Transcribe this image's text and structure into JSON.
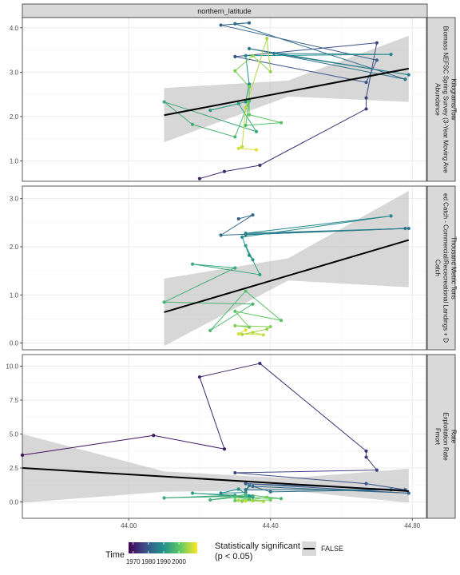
{
  "strip_top": "northern_latitude",
  "x_ticks": [
    "44.00",
    "44.40",
    "44.80"
  ],
  "colors": {
    "strip_fill": "#d9d9d9",
    "strip_border": "#333333",
    "panel_border": "#333333",
    "grid_major": "#ebebeb",
    "grid_minor": "#f5f5f5",
    "ribbon": "#bdbdbd",
    "trend": "#000000",
    "viridis": [
      "#440154",
      "#3b528b",
      "#21908c",
      "#5dc863",
      "#fde725"
    ]
  },
  "legend": {
    "time_title": "Time",
    "time_labels": [
      "1970",
      "1980",
      "1990",
      "2000"
    ],
    "sig_title_line1": "Statistically significant",
    "sig_title_line2": "(p < 0.05)",
    "sig_label": "FALSE"
  },
  "chart_data": [
    {
      "type": "scatter",
      "panel": "Abundance",
      "strip_lines": [
        "Abundance",
        "Biomass NEFSC Spring Survey (3-Year Moving Ave",
        "Kilograms/Tow"
      ],
      "y_ticks": [
        "1.0",
        "2.0",
        "3.0",
        "4.0"
      ],
      "xlim": [
        43.7,
        44.84
      ],
      "ylim": [
        0.54,
        4.23
      ],
      "points": [
        {
          "x": 44.2,
          "y": 0.6,
          "t": 1972
        },
        {
          "x": 44.27,
          "y": 0.76,
          "t": 1973
        },
        {
          "x": 44.37,
          "y": 0.9,
          "t": 1974
        },
        {
          "x": 44.67,
          "y": 2.17,
          "t": 1975
        },
        {
          "x": 44.67,
          "y": 2.42,
          "t": 1976
        },
        {
          "x": 44.7,
          "y": 3.66,
          "t": 1977
        },
        {
          "x": 44.3,
          "y": 3.35,
          "t": 1978
        },
        {
          "x": 44.67,
          "y": 2.77,
          "t": 1979
        },
        {
          "x": 44.7,
          "y": 3.27,
          "t": 1980
        },
        {
          "x": 44.26,
          "y": 4.06,
          "t": 1981
        },
        {
          "x": 44.34,
          "y": 4.11,
          "t": 1982
        },
        {
          "x": 44.3,
          "y": 4.09,
          "t": 1983
        },
        {
          "x": 44.78,
          "y": 2.84,
          "t": 1984
        },
        {
          "x": 44.34,
          "y": 3.53,
          "t": 1985
        },
        {
          "x": 44.79,
          "y": 2.94,
          "t": 1986
        },
        {
          "x": 44.41,
          "y": 3.42,
          "t": 1987
        },
        {
          "x": 44.74,
          "y": 3.4,
          "t": 1988
        },
        {
          "x": 44.33,
          "y": 3.37,
          "t": 1989
        },
        {
          "x": 44.34,
          "y": 2.73,
          "t": 1990
        },
        {
          "x": 44.33,
          "y": 2.33,
          "t": 1991
        },
        {
          "x": 44.23,
          "y": 2.14,
          "t": 1992
        },
        {
          "x": 44.31,
          "y": 2.29,
          "t": 1993
        },
        {
          "x": 44.36,
          "y": 1.66,
          "t": 1994
        },
        {
          "x": 44.1,
          "y": 2.33,
          "t": 1995
        },
        {
          "x": 44.18,
          "y": 1.82,
          "t": 1996
        },
        {
          "x": 44.3,
          "y": 1.54,
          "t": 1997
        },
        {
          "x": 44.34,
          "y": 2.35,
          "t": 1998
        },
        {
          "x": 44.33,
          "y": 1.8,
          "t": 1999
        },
        {
          "x": 44.43,
          "y": 1.86,
          "t": 2000
        },
        {
          "x": 44.34,
          "y": 2.04,
          "t": 2001
        },
        {
          "x": 44.34,
          "y": 2.67,
          "t": 2002
        },
        {
          "x": 44.3,
          "y": 3.03,
          "t": 2003
        },
        {
          "x": 44.35,
          "y": 3.37,
          "t": 2004
        },
        {
          "x": 44.4,
          "y": 3.01,
          "t": 2005
        },
        {
          "x": 44.39,
          "y": 3.76,
          "t": 2006
        },
        {
          "x": 44.33,
          "y": 2.2,
          "t": 2007
        },
        {
          "x": 44.32,
          "y": 1.32,
          "t": 2008
        },
        {
          "x": 44.31,
          "y": 1.28,
          "t": 2009
        },
        {
          "x": 44.36,
          "y": 1.25,
          "t": 2010
        }
      ],
      "trend": {
        "x": [
          44.1,
          44.79
        ],
        "y": [
          2.03,
          3.08
        ]
      },
      "ribbon": {
        "x": [
          44.1,
          44.45,
          44.79
        ],
        "lower": [
          1.42,
          2.45,
          2.33
        ],
        "upper": [
          2.64,
          2.81,
          3.82
        ]
      }
    },
    {
      "type": "scatter",
      "panel": "Catch",
      "strip_lines": [
        "Catch",
        "ed Catch - Commercial/Rececreational Landings + D",
        "Thousand Metric Tons"
      ],
      "y_ticks": [
        "0.0",
        "1.0",
        "2.0",
        "3.0"
      ],
      "xlim": [
        43.7,
        44.84
      ],
      "ylim": [
        -0.14,
        3.26
      ],
      "points": [
        {
          "x": 44.31,
          "y": 2.58,
          "t": 1981
        },
        {
          "x": 44.35,
          "y": 2.66,
          "t": 1982
        },
        {
          "x": 44.26,
          "y": 2.24,
          "t": 1983
        },
        {
          "x": 44.78,
          "y": 2.38,
          "t": 1984
        },
        {
          "x": 44.33,
          "y": 2.25,
          "t": 1985
        },
        {
          "x": 44.79,
          "y": 2.38,
          "t": 1986
        },
        {
          "x": 44.33,
          "y": 2.28,
          "t": 1987
        },
        {
          "x": 44.74,
          "y": 2.64,
          "t": 1988
        },
        {
          "x": 44.32,
          "y": 2.2,
          "t": 1989
        },
        {
          "x": 44.34,
          "y": 1.82,
          "t": 1990
        },
        {
          "x": 44.35,
          "y": 1.73,
          "t": 1991
        },
        {
          "x": 44.33,
          "y": 2.02,
          "t": 1992
        },
        {
          "x": 44.37,
          "y": 1.42,
          "t": 1993
        },
        {
          "x": 44.18,
          "y": 1.64,
          "t": 1994
        },
        {
          "x": 44.3,
          "y": 1.56,
          "t": 1995
        },
        {
          "x": 44.1,
          "y": 0.85,
          "t": 1996
        },
        {
          "x": 44.35,
          "y": 0.81,
          "t": 1997
        },
        {
          "x": 44.23,
          "y": 0.26,
          "t": 1998
        },
        {
          "x": 44.33,
          "y": 1.08,
          "t": 1999
        },
        {
          "x": 44.43,
          "y": 0.47,
          "t": 2000
        },
        {
          "x": 44.3,
          "y": 0.66,
          "t": 2001
        },
        {
          "x": 44.34,
          "y": 0.33,
          "t": 2002
        },
        {
          "x": 44.3,
          "y": 0.36,
          "t": 2003
        },
        {
          "x": 44.4,
          "y": 0.34,
          "t": 2004
        },
        {
          "x": 44.39,
          "y": 0.29,
          "t": 2005
        },
        {
          "x": 44.32,
          "y": 0.18,
          "t": 2006
        },
        {
          "x": 44.35,
          "y": 0.22,
          "t": 2007
        },
        {
          "x": 44.38,
          "y": 0.17,
          "t": 2008
        },
        {
          "x": 44.31,
          "y": 0.19,
          "t": 2009
        },
        {
          "x": 44.33,
          "y": 0.27,
          "t": 2010
        }
      ],
      "trend": {
        "x": [
          44.1,
          44.79
        ],
        "y": [
          0.64,
          2.14
        ]
      },
      "ribbon": {
        "x": [
          44.1,
          44.45,
          44.79
        ],
        "lower": [
          -0.06,
          1.3,
          1.16
        ],
        "upper": [
          1.34,
          1.76,
          3.16
        ]
      }
    },
    {
      "type": "scatter",
      "panel": "Fmort",
      "strip_lines": [
        "Fmort",
        "Exploitation Rate",
        "Rate"
      ],
      "y_ticks": [
        "0.0",
        "2.5",
        "5.0",
        "7.5",
        "10.0"
      ],
      "xlim": [
        43.7,
        44.84
      ],
      "ylim": [
        -1.2,
        10.85
      ],
      "points": [
        {
          "x": 43.7,
          "y": 3.45,
          "t": 1968
        },
        {
          "x": 44.07,
          "y": 4.9,
          "t": 1970
        },
        {
          "x": 44.27,
          "y": 3.9,
          "t": 1971
        },
        {
          "x": 44.2,
          "y": 9.2,
          "t": 1972
        },
        {
          "x": 44.37,
          "y": 10.2,
          "t": 1973
        },
        {
          "x": 44.67,
          "y": 3.75,
          "t": 1974
        },
        {
          "x": 44.67,
          "y": 3.3,
          "t": 1975
        },
        {
          "x": 44.7,
          "y": 2.35,
          "t": 1976
        },
        {
          "x": 44.3,
          "y": 2.15,
          "t": 1977
        },
        {
          "x": 44.67,
          "y": 1.35,
          "t": 1978
        },
        {
          "x": 44.78,
          "y": 0.9,
          "t": 1979
        },
        {
          "x": 44.33,
          "y": 1.35,
          "t": 1980
        },
        {
          "x": 44.79,
          "y": 0.65,
          "t": 1981
        },
        {
          "x": 44.35,
          "y": 1.15,
          "t": 1982
        },
        {
          "x": 44.4,
          "y": 0.75,
          "t": 1983
        },
        {
          "x": 44.74,
          "y": 0.9,
          "t": 1984
        },
        {
          "x": 44.33,
          "y": 0.9,
          "t": 1985
        },
        {
          "x": 44.34,
          "y": 1.2,
          "t": 1986
        },
        {
          "x": 44.33,
          "y": 0.7,
          "t": 1987
        },
        {
          "x": 44.26,
          "y": 0.65,
          "t": 1988
        },
        {
          "x": 44.31,
          "y": 0.95,
          "t": 1989
        },
        {
          "x": 44.34,
          "y": 0.45,
          "t": 1990
        },
        {
          "x": 44.35,
          "y": 0.35,
          "t": 1991
        },
        {
          "x": 44.18,
          "y": 0.65,
          "t": 1992
        },
        {
          "x": 44.3,
          "y": 0.5,
          "t": 1993
        },
        {
          "x": 44.1,
          "y": 0.3,
          "t": 1994
        },
        {
          "x": 44.35,
          "y": 0.45,
          "t": 1995
        },
        {
          "x": 44.23,
          "y": 0.15,
          "t": 1996
        },
        {
          "x": 44.33,
          "y": 0.55,
          "t": 1997
        },
        {
          "x": 44.43,
          "y": 0.25,
          "t": 1998
        },
        {
          "x": 44.3,
          "y": 0.35,
          "t": 1999
        },
        {
          "x": 44.34,
          "y": 0.2,
          "t": 2000
        },
        {
          "x": 44.3,
          "y": 0.1,
          "t": 2001
        },
        {
          "x": 44.4,
          "y": 0.15,
          "t": 2002
        },
        {
          "x": 44.39,
          "y": 0.35,
          "t": 2003
        },
        {
          "x": 44.32,
          "y": 0.05,
          "t": 2004
        },
        {
          "x": 44.35,
          "y": 0.1,
          "t": 2005
        },
        {
          "x": 44.38,
          "y": 0.05,
          "t": 2006
        },
        {
          "x": 44.31,
          "y": 0.12,
          "t": 2007
        },
        {
          "x": 44.33,
          "y": 0.08,
          "t": 2008
        }
      ],
      "trend": {
        "x": [
          43.7,
          44.79
        ],
        "y": [
          2.5,
          0.8
        ]
      },
      "ribbon": {
        "x": [
          43.7,
          44.1,
          44.45,
          44.79
        ],
        "lower": [
          -0.05,
          0.75,
          0.85,
          -0.05
        ],
        "upper": [
          5.0,
          2.25,
          1.75,
          2.45
        ]
      }
    }
  ]
}
